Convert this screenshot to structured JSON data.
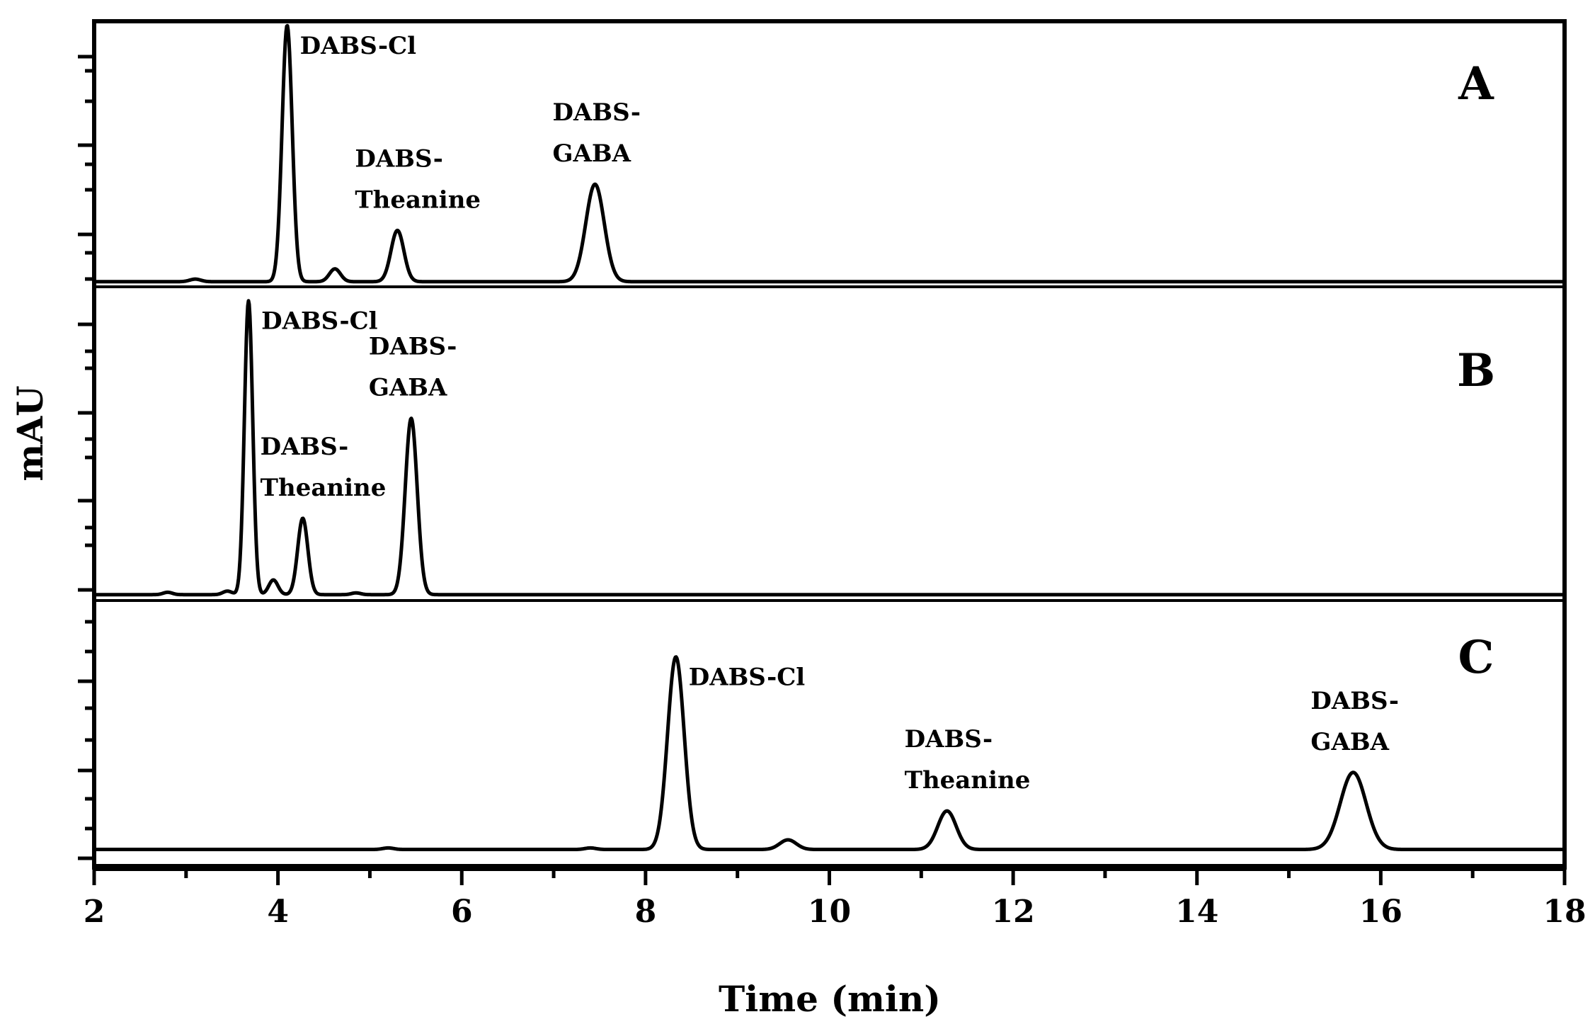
{
  "chart_data": {
    "type": "line",
    "xlabel": "Time (min)",
    "ylabel": "mAU",
    "xlim": [
      2,
      18
    ],
    "x_ticks": [
      "2",
      "4",
      "6",
      "8",
      "10",
      "12",
      "14",
      "16",
      "18"
    ],
    "grid": false,
    "panels": [
      {
        "label": "A",
        "baseline": 0.02,
        "peaks": [
          {
            "time": 3.1,
            "height": 0.01,
            "width": 0.06
          },
          {
            "time": 4.1,
            "height": 1.0,
            "width": 0.055
          },
          {
            "time": 4.62,
            "height": 0.05,
            "width": 0.06
          },
          {
            "time": 5.3,
            "height": 0.2,
            "width": 0.07
          },
          {
            "time": 7.45,
            "height": 0.38,
            "width": 0.1
          }
        ],
        "annotations": [
          {
            "lines": [
              "DABS-Cl"
            ],
            "time": 4.1
          },
          {
            "lines": [
              "DABS-",
              "Theanine"
            ],
            "time": 5.3
          },
          {
            "lines": [
              "DABS-",
              "GABA"
            ],
            "time": 7.45
          }
        ]
      },
      {
        "label": "B",
        "baseline": 0.02,
        "peaks": [
          {
            "time": 2.8,
            "height": 0.008,
            "width": 0.05
          },
          {
            "time": 3.45,
            "height": 0.012,
            "width": 0.05
          },
          {
            "time": 3.68,
            "height": 1.0,
            "width": 0.045
          },
          {
            "time": 3.95,
            "height": 0.05,
            "width": 0.05
          },
          {
            "time": 4.27,
            "height": 0.26,
            "width": 0.055
          },
          {
            "time": 4.85,
            "height": 0.006,
            "width": 0.05
          },
          {
            "time": 5.45,
            "height": 0.6,
            "width": 0.065
          }
        ],
        "annotations": [
          {
            "lines": [
              "DABS-Cl"
            ],
            "time": 3.68
          },
          {
            "lines": [
              "DABS-",
              "Theanine"
            ],
            "time": 4.27
          },
          {
            "lines": [
              "DABS-",
              "GABA"
            ],
            "time": 5.45
          }
        ]
      },
      {
        "label": "C",
        "baseline": 0.02,
        "peaks": [
          {
            "time": 5.2,
            "height": 0.008,
            "width": 0.06
          },
          {
            "time": 7.4,
            "height": 0.008,
            "width": 0.06
          },
          {
            "time": 8.33,
            "height": 1.0,
            "width": 0.09
          },
          {
            "time": 9.55,
            "height": 0.05,
            "width": 0.09
          },
          {
            "time": 11.28,
            "height": 0.2,
            "width": 0.1
          },
          {
            "time": 15.7,
            "height": 0.4,
            "width": 0.14
          }
        ],
        "annotations": [
          {
            "lines": [
              "DABS-Cl"
            ],
            "time": 8.33
          },
          {
            "lines": [
              "DABS-",
              "Theanine"
            ],
            "time": 11.28
          },
          {
            "lines": [
              "DABS-",
              "GABA"
            ],
            "time": 15.7
          }
        ]
      }
    ]
  }
}
